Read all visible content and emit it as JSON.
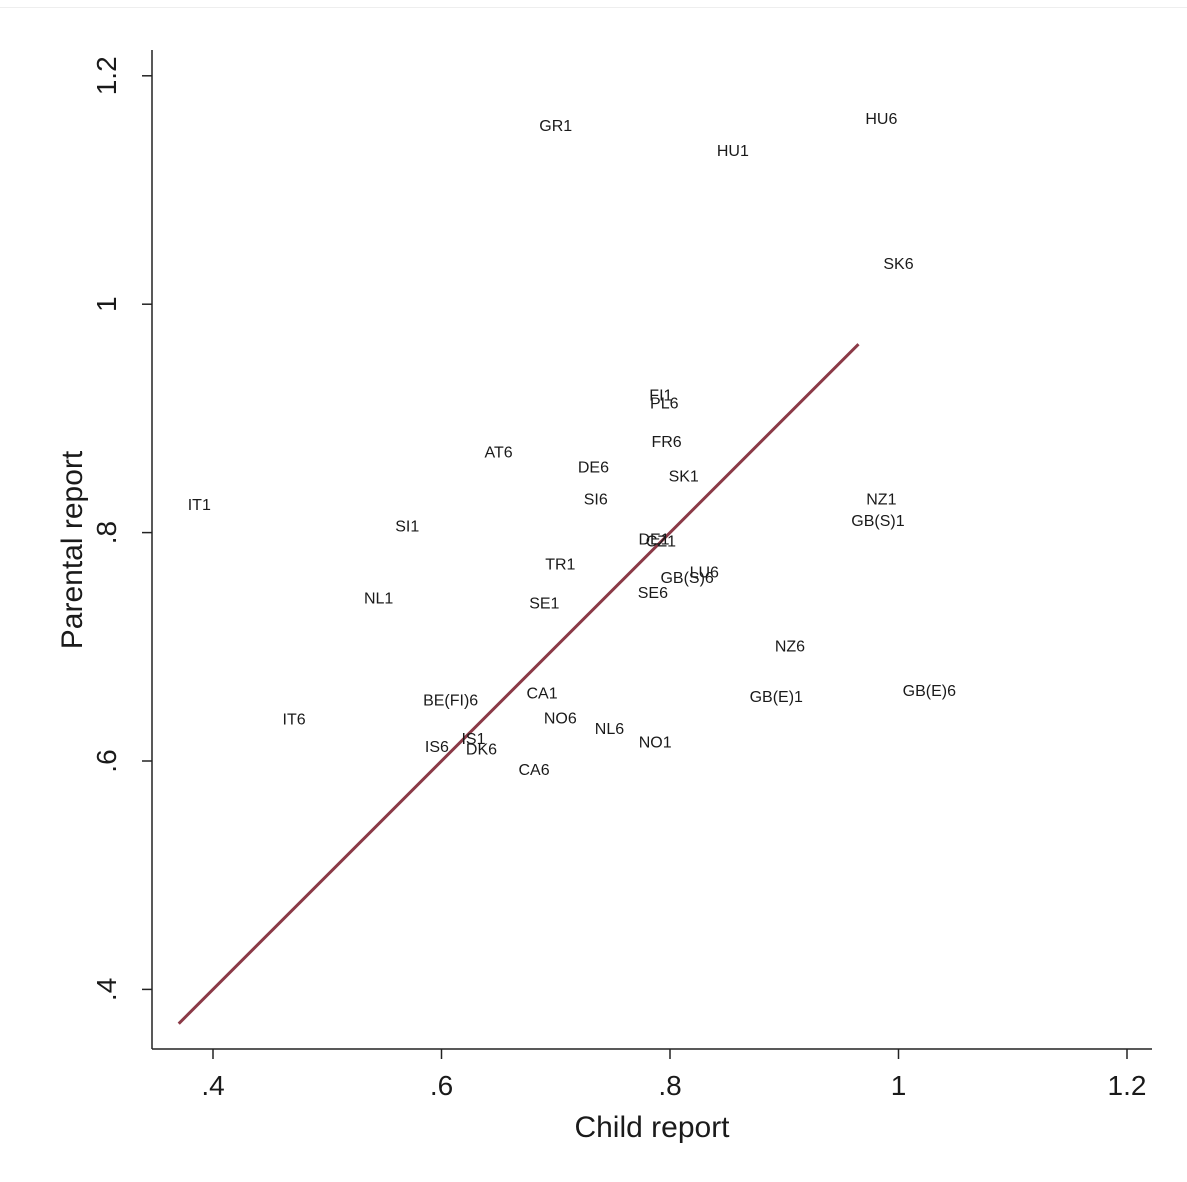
{
  "chart_data": {
    "type": "scatter",
    "xlabel": "Child report",
    "ylabel": "Parental report",
    "xlim": [
      0.35,
      1.22
    ],
    "ylim": [
      0.35,
      1.22
    ],
    "x_ticks": [
      {
        "value": 0.4,
        "label": ".4"
      },
      {
        "value": 0.6,
        "label": ".6"
      },
      {
        "value": 0.8,
        "label": ".8"
      },
      {
        "value": 1.0,
        "label": "1"
      },
      {
        "value": 1.2,
        "label": "1.2"
      }
    ],
    "y_ticks": [
      {
        "value": 0.4,
        "label": ".4"
      },
      {
        "value": 0.6,
        "label": ".6"
      },
      {
        "value": 0.8,
        "label": ".8"
      },
      {
        "value": 1.0,
        "label": "1"
      },
      {
        "value": 1.2,
        "label": "1.2"
      }
    ],
    "grid": false,
    "legend": "none",
    "points": [
      {
        "label": "GR1",
        "x": 0.7,
        "y": 1.157
      },
      {
        "label": "HU6",
        "x": 0.985,
        "y": 1.163
      },
      {
        "label": "HU1",
        "x": 0.855,
        "y": 1.135
      },
      {
        "label": "SK6",
        "x": 1.0,
        "y": 1.036
      },
      {
        "label": "FI1",
        "x": 0.792,
        "y": 0.921
      },
      {
        "label": "PL6",
        "x": 0.795,
        "y": 0.914
      },
      {
        "label": "FR6",
        "x": 0.797,
        "y": 0.88
      },
      {
        "label": "AT6",
        "x": 0.65,
        "y": 0.871
      },
      {
        "label": "DE6",
        "x": 0.733,
        "y": 0.858
      },
      {
        "label": "SK1",
        "x": 0.812,
        "y": 0.85
      },
      {
        "label": "IT1",
        "x": 0.388,
        "y": 0.825
      },
      {
        "label": "SI6",
        "x": 0.735,
        "y": 0.83
      },
      {
        "label": "NZ1",
        "x": 0.985,
        "y": 0.83
      },
      {
        "label": "GB(S)1",
        "x": 0.982,
        "y": 0.811
      },
      {
        "label": "SI1",
        "x": 0.57,
        "y": 0.806
      },
      {
        "label": "DE1",
        "x": 0.786,
        "y": 0.795
      },
      {
        "label": "CZ1",
        "x": 0.792,
        "y": 0.793
      },
      {
        "label": "TR1",
        "x": 0.704,
        "y": 0.773
      },
      {
        "label": "LU6",
        "x": 0.83,
        "y": 0.766
      },
      {
        "label": "GB(S)6",
        "x": 0.815,
        "y": 0.761
      },
      {
        "label": "SE6",
        "x": 0.785,
        "y": 0.748
      },
      {
        "label": "NL1",
        "x": 0.545,
        "y": 0.743
      },
      {
        "label": "SE1",
        "x": 0.69,
        "y": 0.739
      },
      {
        "label": "NZ6",
        "x": 0.905,
        "y": 0.701
      },
      {
        "label": "CA1",
        "x": 0.688,
        "y": 0.66
      },
      {
        "label": "GB(E)6",
        "x": 1.027,
        "y": 0.662
      },
      {
        "label": "GB(E)1",
        "x": 0.893,
        "y": 0.657
      },
      {
        "label": "BE(FI)6",
        "x": 0.608,
        "y": 0.654
      },
      {
        "label": "IT6",
        "x": 0.471,
        "y": 0.637
      },
      {
        "label": "NO6",
        "x": 0.704,
        "y": 0.638
      },
      {
        "label": "NL6",
        "x": 0.747,
        "y": 0.629
      },
      {
        "label": "IS1",
        "x": 0.628,
        "y": 0.62
      },
      {
        "label": "NO1",
        "x": 0.787,
        "y": 0.617
      },
      {
        "label": "IS6",
        "x": 0.596,
        "y": 0.613
      },
      {
        "label": "DK6",
        "x": 0.635,
        "y": 0.611
      },
      {
        "label": "CA6",
        "x": 0.681,
        "y": 0.593
      }
    ],
    "fit_line": {
      "x1": 0.37,
      "y1": 0.37,
      "x2": 0.965,
      "y2": 0.965,
      "color": "#8b3a47"
    }
  }
}
